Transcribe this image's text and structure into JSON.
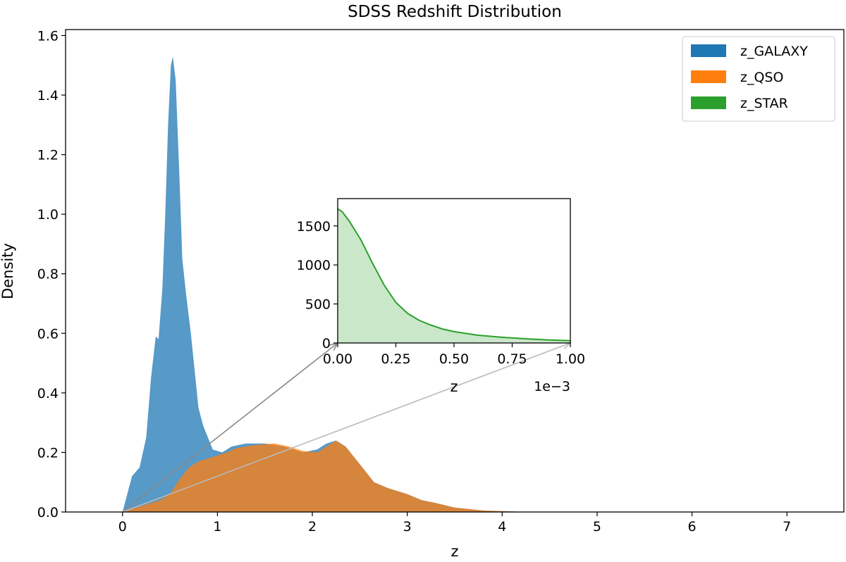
{
  "chart_data": [
    {
      "type": "area",
      "title": "SDSS Redshift Distribution",
      "xlabel": "z",
      "ylabel": "Density",
      "xlim": [
        -0.6,
        7.6
      ],
      "ylim": [
        0,
        1.62
      ],
      "xticks": [
        0,
        1,
        2,
        3,
        4,
        5,
        6,
        7
      ],
      "yticks": [
        0.0,
        0.2,
        0.4,
        0.6,
        0.8,
        1.0,
        1.2,
        1.4,
        1.6
      ],
      "legend": "top-right",
      "grid": false,
      "series": [
        {
          "name": "z_GALAXY",
          "color": "#1f77b4",
          "points": [
            [
              0,
              0
            ],
            [
              0.05,
              0.06
            ],
            [
              0.1,
              0.12
            ],
            [
              0.18,
              0.15
            ],
            [
              0.25,
              0.25
            ],
            [
              0.3,
              0.45
            ],
            [
              0.35,
              0.59
            ],
            [
              0.38,
              0.58
            ],
            [
              0.42,
              0.75
            ],
            [
              0.45,
              1.0
            ],
            [
              0.48,
              1.3
            ],
            [
              0.51,
              1.5
            ],
            [
              0.53,
              1.53
            ],
            [
              0.56,
              1.45
            ],
            [
              0.6,
              1.12
            ],
            [
              0.63,
              0.85
            ],
            [
              0.67,
              0.73
            ],
            [
              0.72,
              0.6
            ],
            [
              0.8,
              0.35
            ],
            [
              0.85,
              0.29
            ],
            [
              0.95,
              0.21
            ],
            [
              1.05,
              0.2
            ],
            [
              1.15,
              0.22
            ],
            [
              1.3,
              0.23
            ],
            [
              1.5,
              0.23
            ],
            [
              1.7,
              0.22
            ],
            [
              1.9,
              0.2
            ],
            [
              2.05,
              0.21
            ],
            [
              2.15,
              0.23
            ],
            [
              2.25,
              0.24
            ],
            [
              2.35,
              0.22
            ],
            [
              2.5,
              0.16
            ],
            [
              2.65,
              0.1
            ],
            [
              2.8,
              0.08
            ],
            [
              3.0,
              0.06
            ],
            [
              3.15,
              0.04
            ],
            [
              3.3,
              0.03
            ],
            [
              3.5,
              0.015
            ],
            [
              3.8,
              0.005
            ],
            [
              4.2,
              0.001
            ],
            [
              5,
              0
            ],
            [
              7.4,
              0
            ]
          ]
        },
        {
          "name": "z_QSO",
          "color": "#ff7f0e",
          "points": [
            [
              0,
              0
            ],
            [
              0.2,
              0.02
            ],
            [
              0.4,
              0.04
            ],
            [
              0.5,
              0.06
            ],
            [
              0.6,
              0.11
            ],
            [
              0.7,
              0.15
            ],
            [
              0.8,
              0.17
            ],
            [
              0.9,
              0.18
            ],
            [
              1.0,
              0.19
            ],
            [
              1.1,
              0.2
            ],
            [
              1.2,
              0.215
            ],
            [
              1.4,
              0.225
            ],
            [
              1.6,
              0.23
            ],
            [
              1.75,
              0.22
            ],
            [
              1.9,
              0.205
            ],
            [
              2.05,
              0.2
            ],
            [
              2.15,
              0.22
            ],
            [
              2.25,
              0.24
            ],
            [
              2.35,
              0.22
            ],
            [
              2.5,
              0.16
            ],
            [
              2.65,
              0.1
            ],
            [
              2.8,
              0.08
            ],
            [
              3.0,
              0.06
            ],
            [
              3.15,
              0.04
            ],
            [
              3.3,
              0.03
            ],
            [
              3.5,
              0.015
            ],
            [
              3.8,
              0.005
            ],
            [
              4.2,
              0.001
            ],
            [
              5,
              0
            ],
            [
              7.4,
              0
            ]
          ]
        },
        {
          "name": "z_STAR",
          "color": "#2ca02c",
          "points": [
            [
              0,
              0
            ],
            [
              7.4,
              0
            ]
          ]
        }
      ]
    },
    {
      "type": "area",
      "title": "",
      "xlabel": "z",
      "ylabel": "",
      "xlim": [
        0,
        1.0
      ],
      "ylim": [
        0,
        1850
      ],
      "xticks": [
        0.0,
        0.25,
        0.5,
        0.75,
        1.0
      ],
      "xtick_labels": [
        "0.00",
        "0.25",
        "0.50",
        "0.75",
        "1.00"
      ],
      "yticks": [
        0,
        500,
        1000,
        1500
      ],
      "x_offset_text": "1e−3",
      "series": [
        {
          "name": "",
          "color": "#2ca02c",
          "points": [
            [
              0,
              1720
            ],
            [
              0.02,
              1680
            ],
            [
              0.05,
              1560
            ],
            [
              0.1,
              1320
            ],
            [
              0.15,
              1020
            ],
            [
              0.2,
              740
            ],
            [
              0.25,
              520
            ],
            [
              0.3,
              380
            ],
            [
              0.35,
              290
            ],
            [
              0.4,
              230
            ],
            [
              0.45,
              180
            ],
            [
              0.5,
              145
            ],
            [
              0.6,
              100
            ],
            [
              0.7,
              75
            ],
            [
              0.8,
              55
            ],
            [
              0.9,
              40
            ],
            [
              1.0,
              30
            ]
          ]
        }
      ]
    }
  ]
}
